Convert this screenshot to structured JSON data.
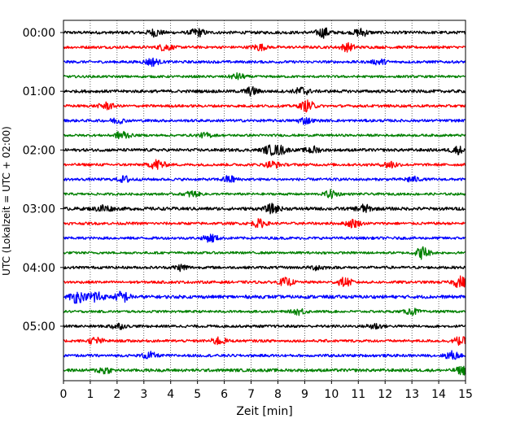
{
  "chart_data": {
    "type": "line",
    "title": "",
    "xlabel": "Zeit  [min]",
    "ylabel": "UTC (Lokalzeit = UTC + 02:00)",
    "xlim": [
      0,
      15
    ],
    "x_ticks": [
      0,
      1,
      2,
      3,
      4,
      5,
      6,
      7,
      8,
      9,
      10,
      11,
      12,
      13,
      14,
      15
    ],
    "x_tick_labels": [
      "0",
      "1",
      "2",
      "3",
      "4",
      "5",
      "6",
      "7",
      "8",
      "9",
      "10",
      "11",
      "12",
      "13",
      "14",
      "15"
    ],
    "y_ticks": [
      {
        "row": 0,
        "label": "00:00"
      },
      {
        "row": 4,
        "label": "01:00"
      },
      {
        "row": 8,
        "label": "02:00"
      },
      {
        "row": 12,
        "label": "03:00"
      },
      {
        "row": 16,
        "label": "04:00"
      },
      {
        "row": 20,
        "label": "05:00"
      }
    ],
    "grid_x": true,
    "grid_style": "dotted",
    "trace_colors": [
      "#000000",
      "#ff0000",
      "#0000ff",
      "#008000"
    ],
    "traces": [
      {
        "start": "00:00",
        "color": "#000000",
        "amplitude": 0.2,
        "bursts": [
          {
            "at": 3.4,
            "amp": 0.45
          },
          {
            "at": 5.0,
            "amp": 0.5
          },
          {
            "at": 9.7,
            "amp": 0.6
          },
          {
            "at": 11.1,
            "amp": 0.5
          }
        ]
      },
      {
        "start": "00:15",
        "color": "#ff0000",
        "amplitude": 0.18,
        "bursts": [
          {
            "at": 3.8,
            "amp": 0.45
          },
          {
            "at": 7.3,
            "amp": 0.4
          },
          {
            "at": 10.6,
            "amp": 0.5
          }
        ]
      },
      {
        "start": "00:30",
        "color": "#0000ff",
        "amplitude": 0.18,
        "bursts": [
          {
            "at": 3.3,
            "amp": 0.5
          },
          {
            "at": 11.8,
            "amp": 0.35
          }
        ]
      },
      {
        "start": "00:45",
        "color": "#008000",
        "amplitude": 0.16,
        "bursts": [
          {
            "at": 6.5,
            "amp": 0.4
          }
        ]
      },
      {
        "start": "01:00",
        "color": "#000000",
        "amplitude": 0.2,
        "bursts": [
          {
            "at": 7.0,
            "amp": 0.5
          },
          {
            "at": 8.9,
            "amp": 0.55
          }
        ]
      },
      {
        "start": "01:15",
        "color": "#ff0000",
        "amplitude": 0.18,
        "bursts": [
          {
            "at": 1.6,
            "amp": 0.45
          },
          {
            "at": 9.1,
            "amp": 0.7
          }
        ]
      },
      {
        "start": "01:30",
        "color": "#0000ff",
        "amplitude": 0.18,
        "bursts": [
          {
            "at": 2.0,
            "amp": 0.35
          },
          {
            "at": 9.0,
            "amp": 0.4
          }
        ]
      },
      {
        "start": "01:45",
        "color": "#008000",
        "amplitude": 0.16,
        "bursts": [
          {
            "at": 2.2,
            "amp": 0.6
          },
          {
            "at": 5.3,
            "amp": 0.3
          }
        ]
      },
      {
        "start": "02:00",
        "color": "#000000",
        "amplitude": 0.2,
        "bursts": [
          {
            "at": 7.7,
            "amp": 0.5
          },
          {
            "at": 8.1,
            "amp": 0.5
          },
          {
            "at": 9.3,
            "amp": 0.45
          },
          {
            "at": 14.7,
            "amp": 0.45
          }
        ]
      },
      {
        "start": "02:15",
        "color": "#ff0000",
        "amplitude": 0.18,
        "bursts": [
          {
            "at": 3.5,
            "amp": 0.7
          },
          {
            "at": 7.8,
            "amp": 0.45
          },
          {
            "at": 12.2,
            "amp": 0.5
          }
        ]
      },
      {
        "start": "02:30",
        "color": "#0000ff",
        "amplitude": 0.18,
        "bursts": [
          {
            "at": 2.3,
            "amp": 0.4
          },
          {
            "at": 6.2,
            "amp": 0.45
          },
          {
            "at": 13.0,
            "amp": 0.35
          }
        ]
      },
      {
        "start": "02:45",
        "color": "#008000",
        "amplitude": 0.16,
        "bursts": [
          {
            "at": 4.8,
            "amp": 0.4
          },
          {
            "at": 10.0,
            "amp": 0.5
          }
        ]
      },
      {
        "start": "03:00",
        "color": "#000000",
        "amplitude": 0.22,
        "bursts": [
          {
            "at": 1.5,
            "amp": 0.5
          },
          {
            "at": 7.8,
            "amp": 0.55
          },
          {
            "at": 11.2,
            "amp": 0.5
          }
        ]
      },
      {
        "start": "03:15",
        "color": "#ff0000",
        "amplitude": 0.18,
        "bursts": [
          {
            "at": 7.3,
            "amp": 0.5
          },
          {
            "at": 10.8,
            "amp": 0.5
          }
        ]
      },
      {
        "start": "03:30",
        "color": "#0000ff",
        "amplitude": 0.18,
        "bursts": [
          {
            "at": 5.5,
            "amp": 0.5
          }
        ]
      },
      {
        "start": "03:45",
        "color": "#008000",
        "amplitude": 0.16,
        "bursts": [
          {
            "at": 13.4,
            "amp": 0.8
          }
        ]
      },
      {
        "start": "04:00",
        "color": "#000000",
        "amplitude": 0.18,
        "bursts": [
          {
            "at": 4.4,
            "amp": 0.4
          },
          {
            "at": 9.5,
            "amp": 0.35
          }
        ]
      },
      {
        "start": "04:15",
        "color": "#ff0000",
        "amplitude": 0.18,
        "bursts": [
          {
            "at": 8.3,
            "amp": 0.5
          },
          {
            "at": 10.5,
            "amp": 0.55
          },
          {
            "at": 14.8,
            "amp": 0.75
          }
        ]
      },
      {
        "start": "04:30",
        "color": "#0000ff",
        "amplitude": 0.22,
        "bursts": [
          {
            "at": 1.2,
            "amp": 0.9
          },
          {
            "at": 0.5,
            "amp": 0.75
          },
          {
            "at": 2.2,
            "amp": 0.7
          }
        ]
      },
      {
        "start": "04:45",
        "color": "#008000",
        "amplitude": 0.16,
        "bursts": [
          {
            "at": 8.8,
            "amp": 0.4
          },
          {
            "at": 13.0,
            "amp": 0.4
          }
        ]
      },
      {
        "start": "05:00",
        "color": "#000000",
        "amplitude": 0.18,
        "bursts": [
          {
            "at": 2.0,
            "amp": 0.4
          },
          {
            "at": 11.6,
            "amp": 0.4
          }
        ]
      },
      {
        "start": "05:15",
        "color": "#ff0000",
        "amplitude": 0.18,
        "bursts": [
          {
            "at": 1.2,
            "amp": 0.45
          },
          {
            "at": 5.8,
            "amp": 0.5
          },
          {
            "at": 14.8,
            "amp": 0.5
          }
        ]
      },
      {
        "start": "05:30",
        "color": "#0000ff",
        "amplitude": 0.18,
        "bursts": [
          {
            "at": 3.2,
            "amp": 0.45
          },
          {
            "at": 14.5,
            "amp": 0.55
          }
        ]
      },
      {
        "start": "05:45",
        "color": "#008000",
        "amplitude": 0.2,
        "bursts": [
          {
            "at": 1.5,
            "amp": 0.45
          },
          {
            "at": 14.9,
            "amp": 0.5
          }
        ]
      }
    ]
  }
}
